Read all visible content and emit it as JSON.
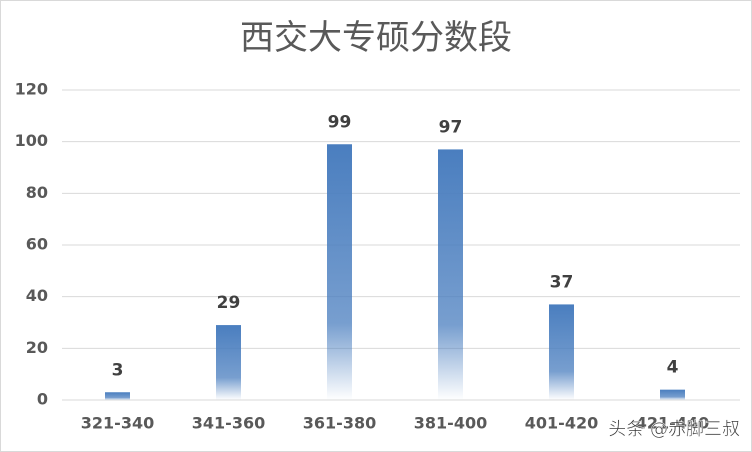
{
  "chart_data": {
    "type": "bar",
    "title": "西交大专硕分数段",
    "categories": [
      "321-340",
      "341-360",
      "361-380",
      "381-400",
      "401-420",
      "421-440"
    ],
    "values": [
      3,
      29,
      99,
      97,
      37,
      4
    ],
    "color": "#4a7ebf",
    "ylim": [
      0,
      120
    ],
    "yticks": [
      0,
      20,
      40,
      60,
      80,
      100,
      120
    ],
    "grid": true,
    "watermark": "头条 @赤脚三叔"
  }
}
